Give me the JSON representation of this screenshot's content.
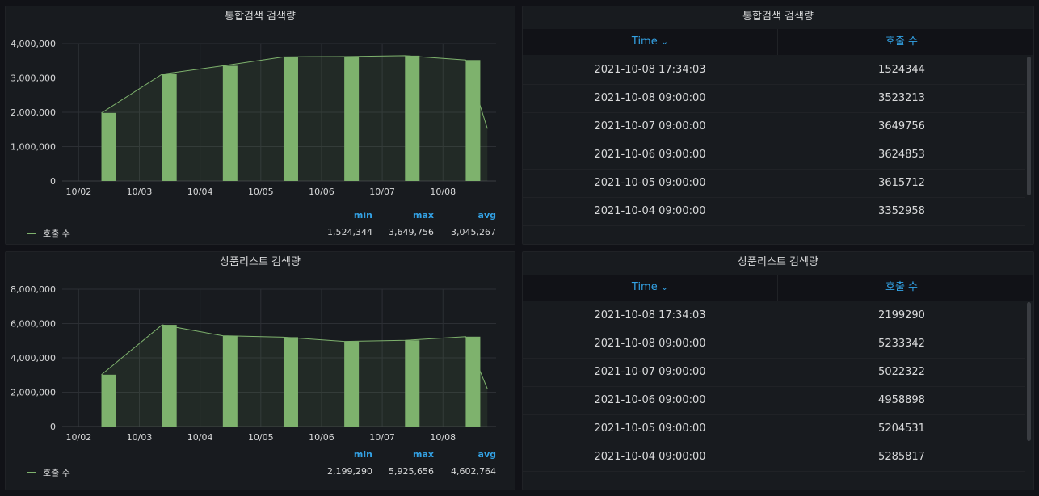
{
  "panels": [
    {
      "title": "통합검색 검색량",
      "legend": {
        "series_name": "호출 수",
        "headers": {
          "min": "min",
          "max": "max",
          "avg": "avg"
        },
        "values": {
          "min": "1,524,344",
          "max": "3,649,756",
          "avg": "3,045,267"
        }
      }
    },
    {
      "title": "상품리스트 검색량",
      "legend": {
        "series_name": "호출 수",
        "headers": {
          "min": "min",
          "max": "max",
          "avg": "avg"
        },
        "values": {
          "min": "2,199,290",
          "max": "5,925,656",
          "avg": "4,602,764"
        }
      }
    }
  ],
  "tables": [
    {
      "title": "통합검색 검색량",
      "columns": {
        "time": "Time",
        "sort_icon": "⌄",
        "count": "호출 수"
      },
      "rows": [
        {
          "time": "2021-10-08 17:34:03",
          "count": "1524344"
        },
        {
          "time": "2021-10-08 09:00:00",
          "count": "3523213"
        },
        {
          "time": "2021-10-07 09:00:00",
          "count": "3649756"
        },
        {
          "time": "2021-10-06 09:00:00",
          "count": "3624853"
        },
        {
          "time": "2021-10-05 09:00:00",
          "count": "3615712"
        },
        {
          "time": "2021-10-04 09:00:00",
          "count": "3352958"
        }
      ]
    },
    {
      "title": "상품리스트 검색량",
      "columns": {
        "time": "Time",
        "sort_icon": "⌄",
        "count": "호출 수"
      },
      "rows": [
        {
          "time": "2021-10-08 17:34:03",
          "count": "2199290"
        },
        {
          "time": "2021-10-08 09:00:00",
          "count": "5233342"
        },
        {
          "time": "2021-10-07 09:00:00",
          "count": "5022322"
        },
        {
          "time": "2021-10-06 09:00:00",
          "count": "4958898"
        },
        {
          "time": "2021-10-05 09:00:00",
          "count": "5204531"
        },
        {
          "time": "2021-10-04 09:00:00",
          "count": "5285817"
        }
      ]
    }
  ],
  "colors": {
    "series": "#7eb26d",
    "accent": "#33a2e5",
    "background": "#111217",
    "panel": "#181b1f"
  },
  "chart_data": [
    {
      "type": "bar",
      "title": "통합검색 검색량",
      "x_ticks": [
        "10/02",
        "10/03",
        "10/04",
        "10/05",
        "10/06",
        "10/07",
        "10/08"
      ],
      "ylim": [
        0,
        4000000
      ],
      "y_ticks": [
        "0",
        "1,000,000",
        "2,000,000",
        "3,000,000",
        "4,000,000"
      ],
      "y_tick_values": [
        0,
        1000000,
        2000000,
        3000000,
        4000000
      ],
      "grid": true,
      "legend_position": "bottom",
      "series": [
        {
          "name": "호출 수",
          "x": [
            "2021-10-02 09:00",
            "2021-10-03 09:00",
            "2021-10-04 09:00",
            "2021-10-05 09:00",
            "2021-10-06 09:00",
            "2021-10-07 09:00",
            "2021-10-08 09:00",
            "2021-10-08 17:34"
          ],
          "values": [
            1980000,
            3110000,
            3352958,
            3615712,
            3624853,
            3649756,
            3523213,
            1524344
          ]
        }
      ]
    },
    {
      "type": "bar",
      "title": "상품리스트 검색량",
      "x_ticks": [
        "10/02",
        "10/03",
        "10/04",
        "10/05",
        "10/06",
        "10/07",
        "10/08"
      ],
      "ylim": [
        0,
        8000000
      ],
      "y_ticks": [
        "0",
        "2,000,000",
        "4,000,000",
        "6,000,000",
        "8,000,000"
      ],
      "y_tick_values": [
        0,
        2000000,
        4000000,
        6000000,
        8000000
      ],
      "grid": true,
      "legend_position": "bottom",
      "series": [
        {
          "name": "호출 수",
          "x": [
            "2021-10-02 09:00",
            "2021-10-03 09:00",
            "2021-10-04 09:00",
            "2021-10-05 09:00",
            "2021-10-06 09:00",
            "2021-10-07 09:00",
            "2021-10-08 09:00",
            "2021-10-08 17:34"
          ],
          "values": [
            3020000,
            5925656,
            5285817,
            5204531,
            4958898,
            5022322,
            5233342,
            2199290
          ]
        }
      ]
    }
  ]
}
